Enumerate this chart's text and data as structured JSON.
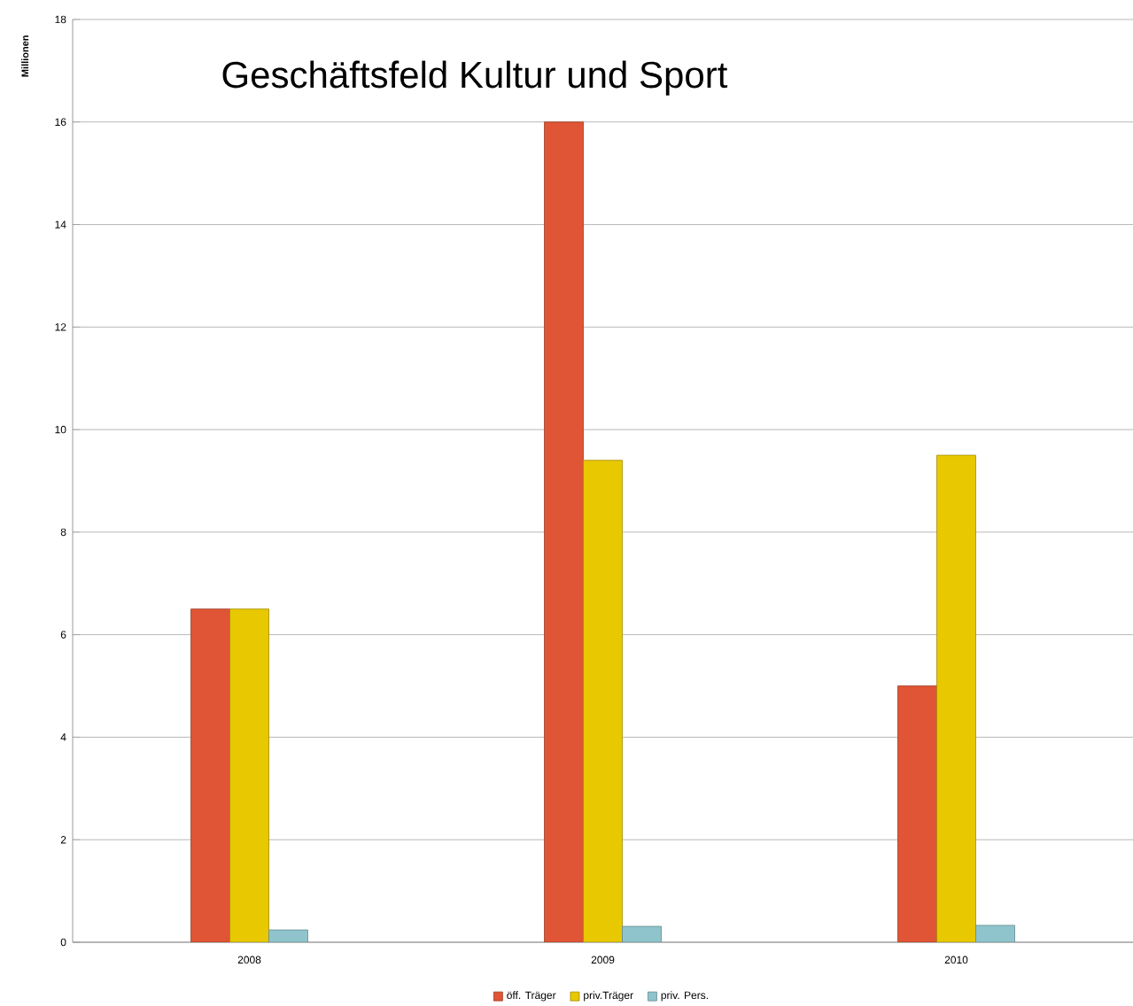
{
  "chart_data": {
    "type": "bar",
    "title": "Geschäftsfeld Kultur und Sport",
    "ylabel": "Millionen",
    "categories": [
      "2008",
      "2009",
      "2010"
    ],
    "series": [
      {
        "name": "öff. Träger",
        "color": "#e05535",
        "values": [
          6.5,
          16.0,
          5.0
        ]
      },
      {
        "name": "priv.Träger",
        "color": "#e8c800",
        "values": [
          6.5,
          9.4,
          9.5
        ]
      },
      {
        "name": "priv. Pers.",
        "color": "#8fc4cc",
        "values": [
          0.24,
          0.31,
          0.33
        ]
      }
    ],
    "ylim": [
      0,
      18
    ],
    "yticks": [
      0,
      2,
      4,
      6,
      8,
      10,
      12,
      14,
      16,
      18
    ],
    "grid": "y",
    "legend": "bottom"
  }
}
